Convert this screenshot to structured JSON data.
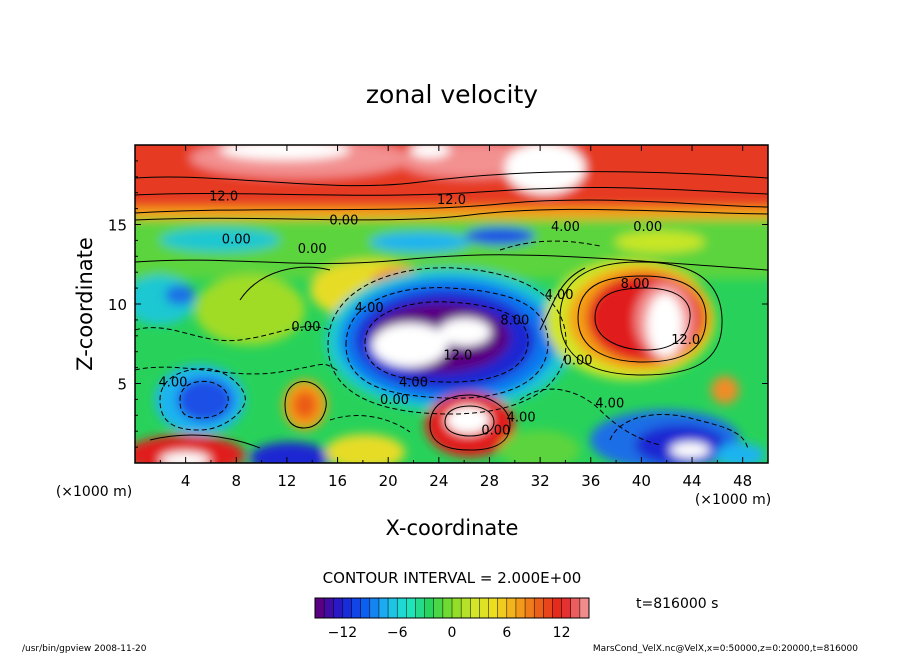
{
  "chart_data": {
    "type": "heatmap",
    "title": "zonal velocity",
    "xlabel": "X-coordinate",
    "ylabel": "Z-coordinate",
    "x_unit": "(×1000 m)",
    "y_unit": "(×1000 m)",
    "xlim": [
      0,
      50
    ],
    "ylim": [
      0,
      20
    ],
    "x_ticks": [
      "4",
      "8",
      "12",
      "16",
      "20",
      "24",
      "28",
      "32",
      "36",
      "40",
      "44",
      "48"
    ],
    "y_ticks": [
      "5",
      "10",
      "15"
    ],
    "contour_interval_text": "CONTOUR INTERVAL = 2.000E+00",
    "time_text": "t=816000 s",
    "colorbar": {
      "range": [
        -15,
        15
      ],
      "ticks": [
        "−12",
        "−6",
        "0",
        "6",
        "12"
      ],
      "colors_low_to_high": [
        "#5a0082",
        "#1e1ed2",
        "#0a5af0",
        "#1eb4f0",
        "#1ee6c8",
        "#28d25a",
        "#82dc28",
        "#d2e628",
        "#f0dc1e",
        "#f5a019",
        "#eb5a19",
        "#e11e1e",
        "#f08c8c"
      ]
    },
    "contour_labels": [
      {
        "text": "12.0",
        "x": 7,
        "y": 16.5
      },
      {
        "text": "12.0",
        "x": 25,
        "y": 16.3
      },
      {
        "text": "0.00",
        "x": 16.5,
        "y": 15.0
      },
      {
        "text": "4.00",
        "x": 34,
        "y": 14.6
      },
      {
        "text": "0.00",
        "x": 40.5,
        "y": 14.6
      },
      {
        "text": "0.00",
        "x": 8,
        "y": 13.8
      },
      {
        "text": "0.00",
        "x": 14,
        "y": 13.2
      },
      {
        "text": "8.00",
        "x": 39.5,
        "y": 11.0
      },
      {
        "text": "4.00",
        "x": 33.5,
        "y": 10.3
      },
      {
        "text": "4.00",
        "x": 18.5,
        "y": 9.5
      },
      {
        "text": "8.00",
        "x": 30,
        "y": 8.7
      },
      {
        "text": "0.00",
        "x": 13.5,
        "y": 8.3
      },
      {
        "text": "12.0",
        "x": 43.5,
        "y": 7.5
      },
      {
        "text": "12.0",
        "x": 25.5,
        "y": 6.5
      },
      {
        "text": "0.00",
        "x": 35,
        "y": 6.2
      },
      {
        "text": "4.00",
        "x": 3,
        "y": 4.8
      },
      {
        "text": "4.00",
        "x": 22,
        "y": 4.8
      },
      {
        "text": "4.00",
        "x": 37.5,
        "y": 3.5
      },
      {
        "text": "0.00",
        "x": 20.5,
        "y": 3.7
      },
      {
        "text": "4.00",
        "x": 30.5,
        "y": 2.6
      },
      {
        "text": "0.00",
        "x": 28.5,
        "y": 1.8
      }
    ]
  },
  "footer": {
    "left_text": "/usr/bin/gpview  2008-11-20",
    "right_text": "MarsCond_VelX.nc@VelX,x=0:50000,z=0:20000,t=816000"
  },
  "colors": {
    "background": "#ffffff",
    "axis": "#000000",
    "contour_line": "#000000"
  }
}
